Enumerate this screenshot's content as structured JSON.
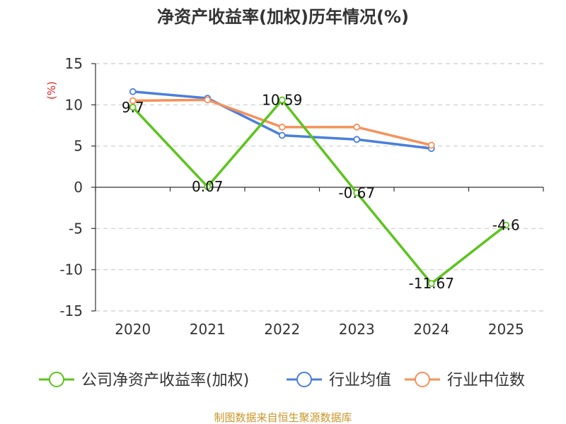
{
  "chart_data": {
    "type": "line",
    "title": "净资产收益率(加权)历年情况(%)",
    "ylabel": "(%)",
    "xlabel": "",
    "categories": [
      "2020",
      "2021",
      "2022",
      "2023",
      "2024",
      "2025"
    ],
    "ylim": [
      -15,
      15
    ],
    "yticks": [
      15,
      10,
      5,
      0,
      -5,
      -10,
      -15
    ],
    "grid": true,
    "legend_position": "bottom",
    "series": [
      {
        "name": "公司净资产收益率(加权)",
        "color": "#5cc41e",
        "values": [
          9.7,
          0.07,
          10.59,
          -0.67,
          -11.67,
          -4.6
        ],
        "labels": [
          "9.7",
          "0.07",
          "10.59",
          "-0.67",
          "-11.67",
          "-4.6"
        ]
      },
      {
        "name": "行业均值",
        "color": "#4a7fdc",
        "values": [
          11.6,
          10.8,
          6.3,
          5.8,
          4.7,
          null
        ]
      },
      {
        "name": "行业中位数",
        "color": "#f5915a",
        "values": [
          10.5,
          10.6,
          7.3,
          7.3,
          5.1,
          null
        ]
      }
    ]
  },
  "source": "制图数据来自恒生聚源数据库"
}
